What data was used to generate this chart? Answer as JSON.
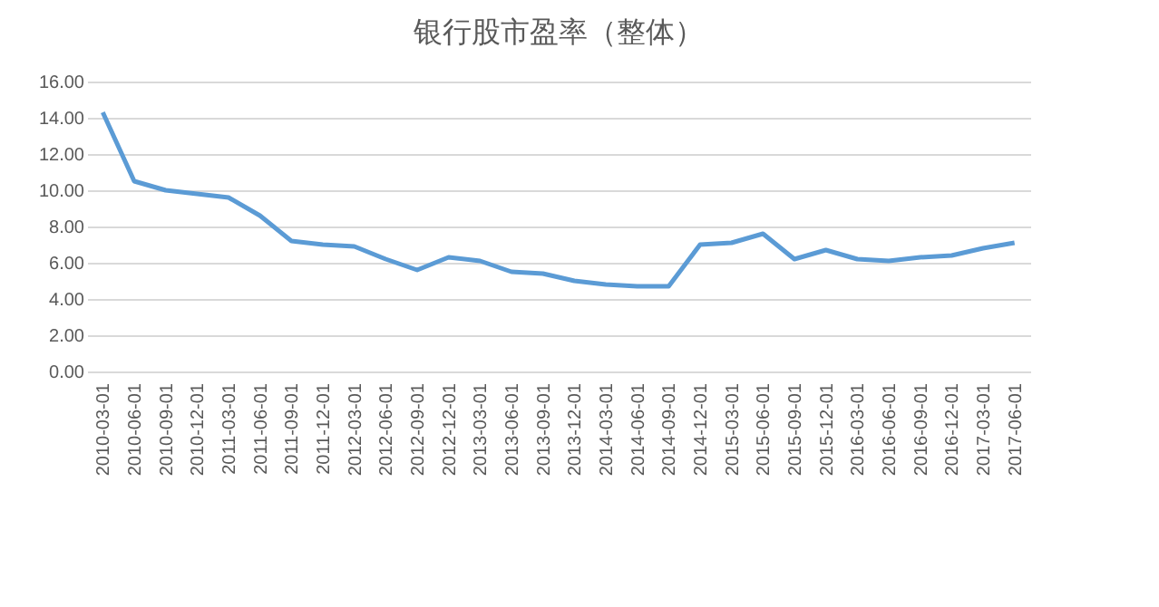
{
  "chart_data": {
    "type": "line",
    "title": "银行股市盈率（整体）",
    "categories": [
      "2010-03-01",
      "2010-06-01",
      "2010-09-01",
      "2010-12-01",
      "2011-03-01",
      "2011-06-01",
      "2011-09-01",
      "2011-12-01",
      "2012-03-01",
      "2012-06-01",
      "2012-09-01",
      "2012-12-01",
      "2013-03-01",
      "2013-06-01",
      "2013-09-01",
      "2013-12-01",
      "2014-03-01",
      "2014-06-01",
      "2014-09-01",
      "2014-12-01",
      "2015-03-01",
      "2015-06-01",
      "2015-09-01",
      "2015-12-01",
      "2016-03-01",
      "2016-06-01",
      "2016-09-01",
      "2016-12-01",
      "2017-03-01",
      "2017-06-01"
    ],
    "series": [
      {
        "color": "#5b9bd5",
        "values": [
          14.3,
          10.5,
          10.0,
          9.8,
          9.6,
          8.6,
          7.2,
          7.0,
          6.9,
          6.2,
          5.6,
          6.3,
          6.1,
          5.5,
          5.4,
          5.0,
          4.8,
          4.7,
          4.7,
          7.0,
          7.1,
          7.6,
          6.2,
          6.7,
          6.2,
          6.1,
          6.3,
          6.4,
          6.8,
          7.1
        ]
      }
    ],
    "ylim": [
      0,
      16
    ],
    "yticks": [
      {
        "value": 0,
        "label": "0.00"
      },
      {
        "value": 2,
        "label": "2.00"
      },
      {
        "value": 4,
        "label": "4.00"
      },
      {
        "value": 6,
        "label": "6.00"
      },
      {
        "value": 8,
        "label": "8.00"
      },
      {
        "value": 10,
        "label": "10.00"
      },
      {
        "value": 12,
        "label": "12.00"
      },
      {
        "value": 14,
        "label": "14.00"
      },
      {
        "value": 16,
        "label": "16.00"
      }
    ],
    "grid": "y",
    "marker": "none",
    "line_style": "solid"
  }
}
